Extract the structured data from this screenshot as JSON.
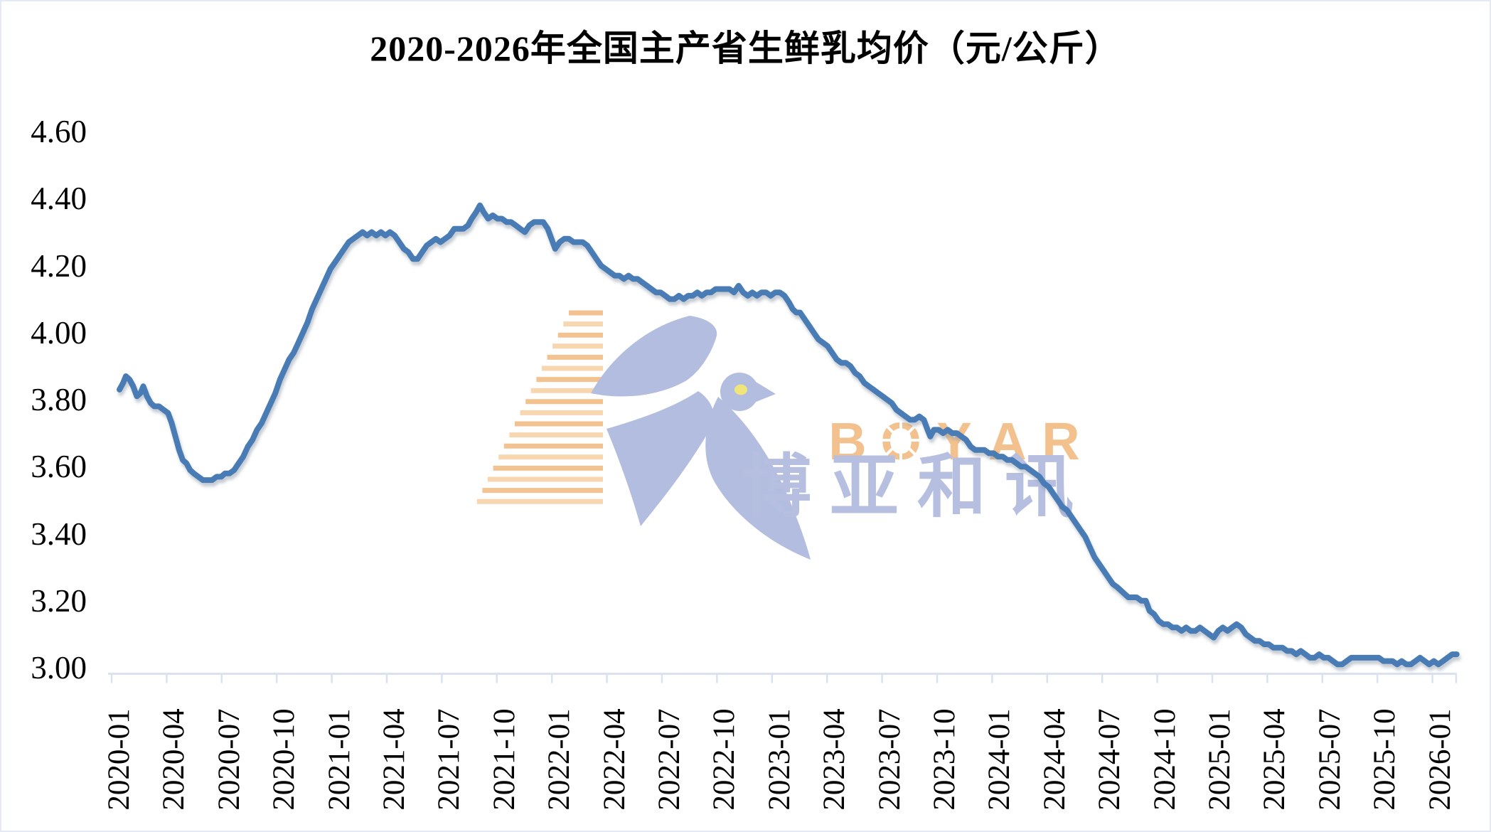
{
  "watermark": {
    "brand_latin": "BOYAR",
    "brand_cjk": "博亚和讯",
    "logo": "swallow-bird-with-speed-stripes"
  },
  "colors": {
    "line": "#4A7CB5",
    "axis": "#D9E2EE",
    "title_text": "#000000",
    "watermark_bird": "#B3BDDF",
    "watermark_stripes": "#F2C291",
    "watermark_stripes_light": "#F7D6B0",
    "watermark_latin": "#F2C18D",
    "watermark_cjk": "#B6BFE0",
    "watermark_eye": "#EFE57A"
  },
  "chart_data": {
    "type": "line",
    "title": "2020-2026年全国主产省生鲜乳均价（元/公斤）",
    "unit": "元/公斤",
    "xlabel": "",
    "ylabel": "",
    "ylim": [
      3.0,
      4.6
    ],
    "y_tick_step": 0.2,
    "y_ticks": [
      "4.60",
      "4.40",
      "4.20",
      "4.00",
      "3.80",
      "3.60",
      "3.40",
      "3.20",
      "3.00"
    ],
    "x_tick_labels": [
      "2020-01",
      "2020-04",
      "2020-07",
      "2020-10",
      "2021-01",
      "2021-04",
      "2021-07",
      "2021-10",
      "2022-01",
      "2022-04",
      "2022-07",
      "2022-10",
      "2023-01",
      "2023-04",
      "2023-07",
      "2023-10",
      "2024-01",
      "2024-04",
      "2024-07",
      "2024-10",
      "2025-01",
      "2025-04",
      "2025-07",
      "2025-10",
      "2026-01"
    ],
    "x_range_note": "weekly data from 2020-01 to 2026-02, x expressed in months since 2020-01",
    "grid": "off",
    "legend": "none",
    "series": [
      {
        "name": "全国主产省生鲜乳均价",
        "x_unit": "months since 2020-01",
        "points": [
          [
            0.0,
            3.83
          ],
          [
            0.2,
            3.85
          ],
          [
            0.35,
            3.87
          ],
          [
            0.55,
            3.86
          ],
          [
            0.75,
            3.84
          ],
          [
            0.95,
            3.81
          ],
          [
            1.15,
            3.82
          ],
          [
            1.3,
            3.84
          ],
          [
            1.5,
            3.81
          ],
          [
            1.7,
            3.79
          ],
          [
            1.9,
            3.78
          ],
          [
            2.15,
            3.78
          ],
          [
            2.4,
            3.77
          ],
          [
            2.65,
            3.76
          ],
          [
            2.85,
            3.73
          ],
          [
            3.05,
            3.69
          ],
          [
            3.25,
            3.65
          ],
          [
            3.45,
            3.62
          ],
          [
            3.65,
            3.61
          ],
          [
            3.85,
            3.59
          ],
          [
            4.05,
            3.58
          ],
          [
            4.3,
            3.57
          ],
          [
            4.55,
            3.56
          ],
          [
            4.8,
            3.56
          ],
          [
            5.05,
            3.56
          ],
          [
            5.3,
            3.57
          ],
          [
            5.55,
            3.57
          ],
          [
            5.75,
            3.58
          ],
          [
            6.0,
            3.58
          ],
          [
            6.25,
            3.59
          ],
          [
            6.5,
            3.61
          ],
          [
            6.75,
            3.63
          ],
          [
            7.0,
            3.66
          ],
          [
            7.25,
            3.68
          ],
          [
            7.5,
            3.71
          ],
          [
            7.75,
            3.73
          ],
          [
            8.0,
            3.76
          ],
          [
            8.25,
            3.79
          ],
          [
            8.5,
            3.82
          ],
          [
            8.75,
            3.86
          ],
          [
            9.0,
            3.89
          ],
          [
            9.25,
            3.92
          ],
          [
            9.5,
            3.94
          ],
          [
            9.75,
            3.97
          ],
          [
            10.0,
            4.0
          ],
          [
            10.25,
            4.03
          ],
          [
            10.5,
            4.07
          ],
          [
            10.75,
            4.1
          ],
          [
            11.0,
            4.13
          ],
          [
            11.25,
            4.16
          ],
          [
            11.5,
            4.19
          ],
          [
            11.75,
            4.21
          ],
          [
            12.0,
            4.23
          ],
          [
            12.25,
            4.25
          ],
          [
            12.5,
            4.27
          ],
          [
            12.75,
            4.28
          ],
          [
            13.0,
            4.29
          ],
          [
            13.25,
            4.3
          ],
          [
            13.5,
            4.29
          ],
          [
            13.75,
            4.3
          ],
          [
            14.0,
            4.29
          ],
          [
            14.25,
            4.3
          ],
          [
            14.5,
            4.29
          ],
          [
            14.75,
            4.3
          ],
          [
            15.0,
            4.29
          ],
          [
            15.25,
            4.27
          ],
          [
            15.5,
            4.25
          ],
          [
            15.75,
            4.24
          ],
          [
            16.0,
            4.22
          ],
          [
            16.25,
            4.22
          ],
          [
            16.5,
            4.24
          ],
          [
            16.75,
            4.26
          ],
          [
            17.0,
            4.27
          ],
          [
            17.25,
            4.28
          ],
          [
            17.5,
            4.27
          ],
          [
            17.75,
            4.28
          ],
          [
            18.0,
            4.29
          ],
          [
            18.25,
            4.31
          ],
          [
            18.5,
            4.31
          ],
          [
            18.75,
            4.31
          ],
          [
            19.0,
            4.32
          ],
          [
            19.2,
            4.34
          ],
          [
            19.45,
            4.36
          ],
          [
            19.65,
            4.38
          ],
          [
            19.85,
            4.36
          ],
          [
            20.1,
            4.34
          ],
          [
            20.35,
            4.35
          ],
          [
            20.6,
            4.34
          ],
          [
            20.85,
            4.34
          ],
          [
            21.1,
            4.33
          ],
          [
            21.35,
            4.33
          ],
          [
            21.6,
            4.32
          ],
          [
            21.85,
            4.31
          ],
          [
            22.1,
            4.3
          ],
          [
            22.35,
            4.32
          ],
          [
            22.6,
            4.33
          ],
          [
            22.85,
            4.33
          ],
          [
            23.1,
            4.33
          ],
          [
            23.35,
            4.31
          ],
          [
            23.55,
            4.28
          ],
          [
            23.75,
            4.25
          ],
          [
            24.0,
            4.27
          ],
          [
            24.25,
            4.28
          ],
          [
            24.5,
            4.28
          ],
          [
            24.75,
            4.27
          ],
          [
            25.0,
            4.27
          ],
          [
            25.25,
            4.27
          ],
          [
            25.5,
            4.26
          ],
          [
            25.75,
            4.24
          ],
          [
            26.0,
            4.22
          ],
          [
            26.25,
            4.2
          ],
          [
            26.5,
            4.19
          ],
          [
            26.75,
            4.18
          ],
          [
            27.0,
            4.17
          ],
          [
            27.25,
            4.17
          ],
          [
            27.5,
            4.16
          ],
          [
            27.75,
            4.17
          ],
          [
            28.0,
            4.16
          ],
          [
            28.25,
            4.16
          ],
          [
            28.5,
            4.15
          ],
          [
            28.75,
            4.14
          ],
          [
            29.0,
            4.13
          ],
          [
            29.25,
            4.12
          ],
          [
            29.5,
            4.12
          ],
          [
            29.75,
            4.11
          ],
          [
            30.0,
            4.1
          ],
          [
            30.25,
            4.1
          ],
          [
            30.5,
            4.11
          ],
          [
            30.75,
            4.1
          ],
          [
            31.0,
            4.11
          ],
          [
            31.25,
            4.11
          ],
          [
            31.5,
            4.12
          ],
          [
            31.75,
            4.11
          ],
          [
            32.0,
            4.12
          ],
          [
            32.25,
            4.12
          ],
          [
            32.5,
            4.13
          ],
          [
            32.75,
            4.13
          ],
          [
            33.0,
            4.13
          ],
          [
            33.25,
            4.13
          ],
          [
            33.5,
            4.12
          ],
          [
            33.75,
            4.14
          ],
          [
            34.0,
            4.12
          ],
          [
            34.25,
            4.11
          ],
          [
            34.5,
            4.12
          ],
          [
            34.75,
            4.11
          ],
          [
            35.0,
            4.12
          ],
          [
            35.25,
            4.12
          ],
          [
            35.5,
            4.11
          ],
          [
            35.75,
            4.12
          ],
          [
            36.0,
            4.12
          ],
          [
            36.25,
            4.11
          ],
          [
            36.5,
            4.09
          ],
          [
            36.7,
            4.07
          ],
          [
            36.9,
            4.06
          ],
          [
            37.1,
            4.06
          ],
          [
            37.35,
            4.04
          ],
          [
            37.6,
            4.02
          ],
          [
            37.85,
            4.0
          ],
          [
            38.1,
            3.98
          ],
          [
            38.35,
            3.97
          ],
          [
            38.6,
            3.96
          ],
          [
            38.85,
            3.94
          ],
          [
            39.1,
            3.92
          ],
          [
            39.35,
            3.91
          ],
          [
            39.6,
            3.91
          ],
          [
            39.85,
            3.9
          ],
          [
            40.1,
            3.88
          ],
          [
            40.35,
            3.87
          ],
          [
            40.6,
            3.85
          ],
          [
            40.85,
            3.84
          ],
          [
            41.1,
            3.83
          ],
          [
            41.35,
            3.82
          ],
          [
            41.6,
            3.81
          ],
          [
            41.85,
            3.8
          ],
          [
            42.1,
            3.79
          ],
          [
            42.35,
            3.77
          ],
          [
            42.6,
            3.76
          ],
          [
            42.85,
            3.75
          ],
          [
            43.1,
            3.74
          ],
          [
            43.35,
            3.74
          ],
          [
            43.6,
            3.75
          ],
          [
            43.85,
            3.74
          ],
          [
            44.05,
            3.71
          ],
          [
            44.2,
            3.69
          ],
          [
            44.4,
            3.71
          ],
          [
            44.65,
            3.71
          ],
          [
            44.9,
            3.7
          ],
          [
            45.15,
            3.71
          ],
          [
            45.4,
            3.7
          ],
          [
            45.65,
            3.7
          ],
          [
            45.9,
            3.69
          ],
          [
            46.15,
            3.68
          ],
          [
            46.4,
            3.66
          ],
          [
            46.65,
            3.65
          ],
          [
            46.9,
            3.65
          ],
          [
            47.15,
            3.65
          ],
          [
            47.4,
            3.64
          ],
          [
            47.65,
            3.64
          ],
          [
            47.9,
            3.63
          ],
          [
            48.15,
            3.63
          ],
          [
            48.4,
            3.62
          ],
          [
            48.65,
            3.62
          ],
          [
            48.9,
            3.61
          ],
          [
            49.15,
            3.6
          ],
          [
            49.4,
            3.6
          ],
          [
            49.65,
            3.59
          ],
          [
            49.9,
            3.58
          ],
          [
            50.15,
            3.57
          ],
          [
            50.4,
            3.55
          ],
          [
            50.65,
            3.54
          ],
          [
            50.9,
            3.52
          ],
          [
            51.15,
            3.5
          ],
          [
            51.4,
            3.48
          ],
          [
            51.65,
            3.47
          ],
          [
            51.9,
            3.45
          ],
          [
            52.15,
            3.43
          ],
          [
            52.4,
            3.41
          ],
          [
            52.65,
            3.39
          ],
          [
            52.9,
            3.36
          ],
          [
            53.15,
            3.33
          ],
          [
            53.4,
            3.31
          ],
          [
            53.65,
            3.29
          ],
          [
            53.9,
            3.27
          ],
          [
            54.15,
            3.25
          ],
          [
            54.4,
            3.24
          ],
          [
            54.6,
            3.23
          ],
          [
            54.8,
            3.22
          ],
          [
            55.0,
            3.21
          ],
          [
            55.2,
            3.21
          ],
          [
            55.45,
            3.21
          ],
          [
            55.7,
            3.2
          ],
          [
            55.95,
            3.2
          ],
          [
            56.15,
            3.17
          ],
          [
            56.4,
            3.16
          ],
          [
            56.65,
            3.14
          ],
          [
            56.9,
            3.13
          ],
          [
            57.15,
            3.13
          ],
          [
            57.4,
            3.12
          ],
          [
            57.65,
            3.12
          ],
          [
            57.9,
            3.11
          ],
          [
            58.15,
            3.12
          ],
          [
            58.4,
            3.11
          ],
          [
            58.65,
            3.11
          ],
          [
            58.9,
            3.12
          ],
          [
            59.15,
            3.11
          ],
          [
            59.4,
            3.1
          ],
          [
            59.65,
            3.09
          ],
          [
            59.9,
            3.11
          ],
          [
            60.15,
            3.12
          ],
          [
            60.4,
            3.11
          ],
          [
            60.65,
            3.12
          ],
          [
            60.9,
            3.13
          ],
          [
            61.15,
            3.12
          ],
          [
            61.4,
            3.1
          ],
          [
            61.65,
            3.09
          ],
          [
            61.9,
            3.08
          ],
          [
            62.15,
            3.08
          ],
          [
            62.4,
            3.07
          ],
          [
            62.65,
            3.07
          ],
          [
            62.9,
            3.06
          ],
          [
            63.15,
            3.06
          ],
          [
            63.4,
            3.06
          ],
          [
            63.65,
            3.05
          ],
          [
            63.9,
            3.05
          ],
          [
            64.15,
            3.04
          ],
          [
            64.4,
            3.05
          ],
          [
            64.65,
            3.04
          ],
          [
            64.9,
            3.03
          ],
          [
            65.15,
            3.03
          ],
          [
            65.4,
            3.04
          ],
          [
            65.65,
            3.03
          ],
          [
            65.9,
            3.03
          ],
          [
            66.15,
            3.02
          ],
          [
            66.4,
            3.01
          ],
          [
            66.65,
            3.01
          ],
          [
            66.9,
            3.02
          ],
          [
            67.15,
            3.03
          ],
          [
            67.4,
            3.03
          ],
          [
            67.65,
            3.03
          ],
          [
            67.9,
            3.03
          ],
          [
            68.15,
            3.03
          ],
          [
            68.4,
            3.03
          ],
          [
            68.65,
            3.03
          ],
          [
            68.9,
            3.02
          ],
          [
            69.15,
            3.02
          ],
          [
            69.4,
            3.02
          ],
          [
            69.65,
            3.01
          ],
          [
            69.9,
            3.02
          ],
          [
            70.15,
            3.01
          ],
          [
            70.4,
            3.01
          ],
          [
            70.65,
            3.02
          ],
          [
            70.9,
            3.03
          ],
          [
            71.15,
            3.02
          ],
          [
            71.4,
            3.01
          ],
          [
            71.65,
            3.02
          ],
          [
            71.9,
            3.01
          ],
          [
            72.15,
            3.02
          ],
          [
            72.4,
            3.03
          ],
          [
            72.65,
            3.04
          ],
          [
            72.9,
            3.04
          ]
        ]
      }
    ]
  }
}
